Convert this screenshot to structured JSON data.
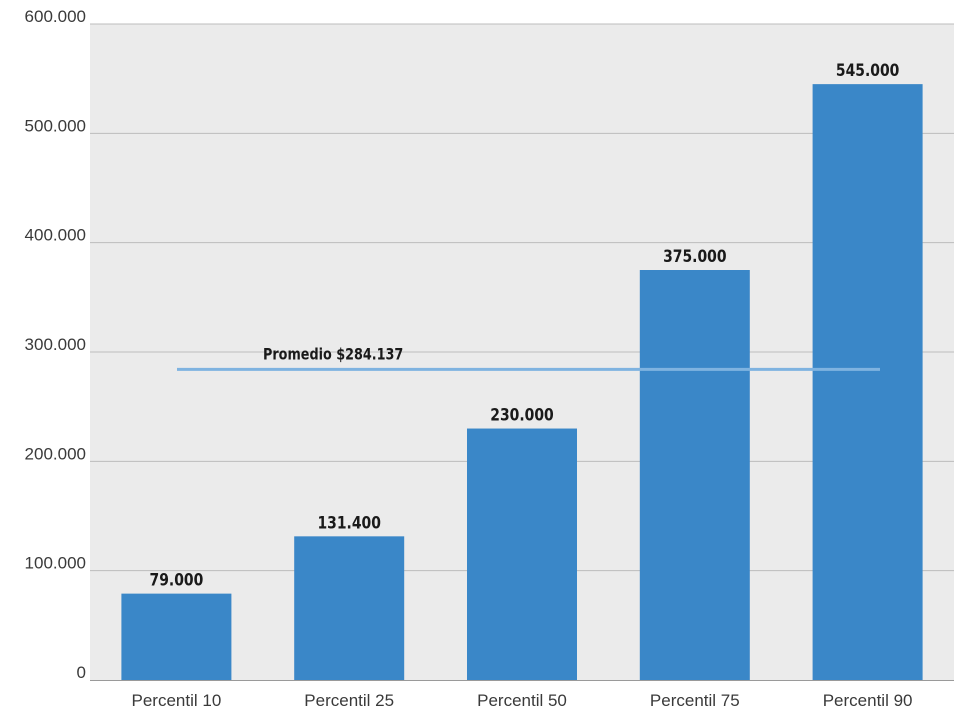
{
  "chart_data": {
    "type": "bar",
    "categories": [
      "Percentil 10",
      "Percentil 25",
      "Percentil 50",
      "Percentil 75",
      "Percentil 90"
    ],
    "values": [
      79000,
      131400,
      230000,
      375000,
      545000
    ],
    "data_labels": [
      "79.000",
      "131.400",
      "230.000",
      "375.000",
      "545.000"
    ],
    "ylim": [
      0,
      600000
    ],
    "y_ticks": [
      0,
      100000,
      200000,
      300000,
      400000,
      500000,
      600000
    ],
    "y_tick_labels": [
      "0",
      "100.000",
      "200.000",
      "300.000",
      "400.000",
      "500.000",
      "600.000"
    ],
    "grid": true,
    "reference_line": {
      "value": 284137,
      "label": "Promedio $284.137",
      "color": "#7fb3e0"
    },
    "colors": {
      "bar": "#3a87c8",
      "plot_background": "#ebebeb",
      "gridline": "#bdbdbd"
    },
    "title": "",
    "xlabel": "",
    "ylabel": ""
  }
}
